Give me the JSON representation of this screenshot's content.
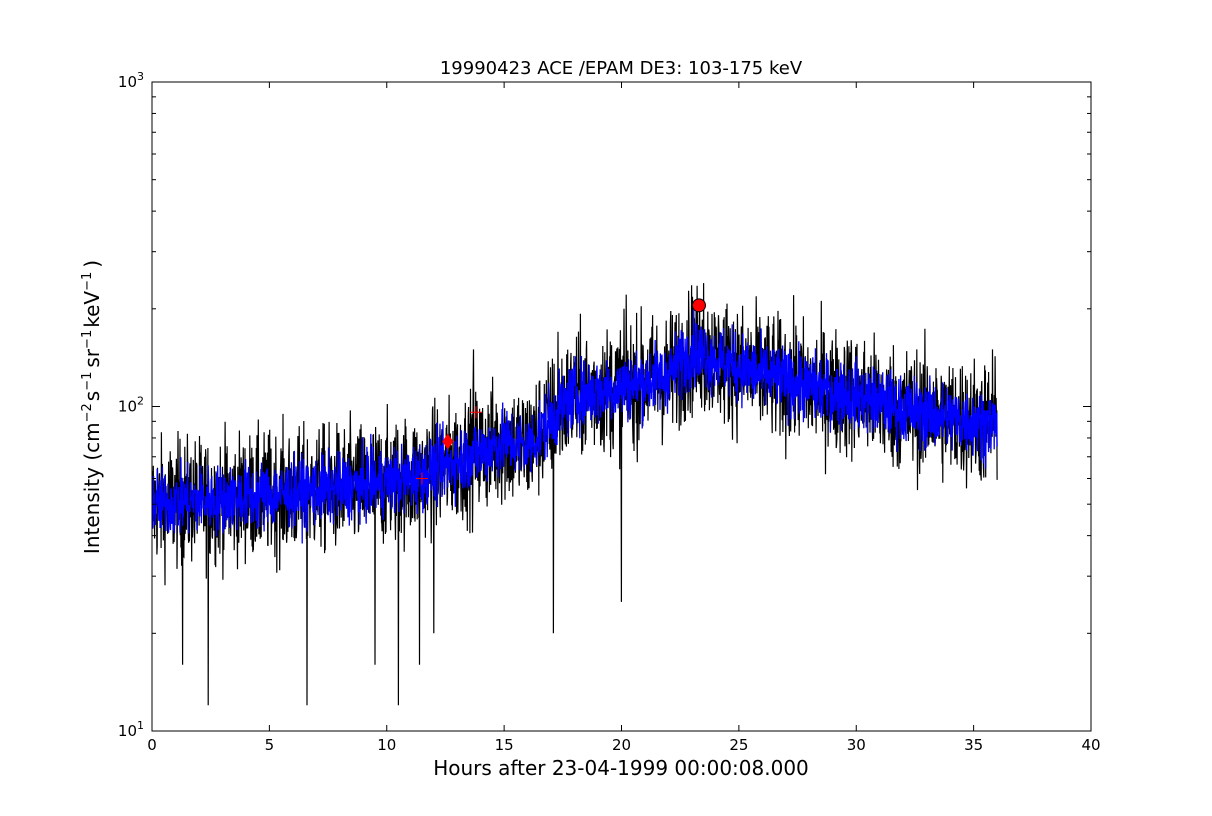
{
  "chart_data": {
    "type": "line",
    "title": "19990423 ACE /EPAM DE3: 103-175 keV",
    "xlabel": "Hours after 23-04-1999 00:00:08.000",
    "ylabel_main": "Intensity (cm",
    "ylabel_parts": [
      "Intensity (cm",
      "−2",
      "s",
      "−1",
      "sr",
      "−1",
      "keV",
      "−1",
      ")"
    ],
    "xlim": [
      0,
      40
    ],
    "ylim": [
      10,
      1000
    ],
    "yscale": "log",
    "grid": false,
    "xticks": [
      0,
      5,
      10,
      15,
      20,
      25,
      30,
      35,
      40
    ],
    "xtick_labels": [
      "0",
      "5",
      "10",
      "15",
      "20",
      "25",
      "30",
      "35",
      "40"
    ],
    "yticks": [
      10,
      100,
      1000
    ],
    "ytick_base": "10",
    "ytick_exponents": [
      "1",
      "2",
      "3"
    ],
    "series": [
      {
        "color": "#000000",
        "kind": "raw",
        "x_range": [
          0,
          36
        ],
        "trend": [
          [
            0,
            50
          ],
          [
            3,
            52
          ],
          [
            6,
            54
          ],
          [
            9,
            57
          ],
          [
            11,
            60
          ],
          [
            13,
            68
          ],
          [
            15,
            78
          ],
          [
            16,
            75
          ],
          [
            17,
            92
          ],
          [
            18,
            108
          ],
          [
            20,
            115
          ],
          [
            22,
            125
          ],
          [
            23,
            150
          ],
          [
            24,
            140
          ],
          [
            26,
            125
          ],
          [
            28,
            115
          ],
          [
            30,
            108
          ],
          [
            32,
            98
          ],
          [
            34,
            92
          ],
          [
            36,
            88
          ]
        ],
        "spikes_up": [
          [
            13.7,
            150
          ],
          [
            17.3,
            170
          ],
          [
            20.1,
            200
          ],
          [
            23.5,
            240
          ],
          [
            35.8,
            150
          ]
        ],
        "spikes_down": [
          [
            2.4,
            12
          ],
          [
            6.6,
            12
          ],
          [
            10.5,
            12
          ],
          [
            1.3,
            16
          ],
          [
            9.5,
            16
          ],
          [
            11.4,
            16
          ],
          [
            17.1,
            20
          ],
          [
            20.0,
            25
          ],
          [
            12.0,
            20
          ]
        ]
      },
      {
        "color": "#0000ff",
        "kind": "smoothed",
        "x_range": [
          0,
          36
        ],
        "trend": [
          [
            0,
            50
          ],
          [
            3,
            52
          ],
          [
            6,
            54
          ],
          [
            9,
            57
          ],
          [
            11,
            60
          ],
          [
            13,
            68
          ],
          [
            15,
            78
          ],
          [
            16,
            75
          ],
          [
            17,
            92
          ],
          [
            18,
            108
          ],
          [
            20,
            115
          ],
          [
            22,
            125
          ],
          [
            23,
            150
          ],
          [
            24,
            140
          ],
          [
            26,
            125
          ],
          [
            28,
            115
          ],
          [
            30,
            108
          ],
          [
            32,
            98
          ],
          [
            34,
            92
          ],
          [
            36,
            88
          ]
        ]
      }
    ],
    "markers": [
      {
        "kind": "circle",
        "x": 23.3,
        "y": 205,
        "color": "#ff0000"
      },
      {
        "kind": "diamond",
        "x": 12.6,
        "y": 78,
        "color": "#ff0000"
      },
      {
        "kind": "plus",
        "x": 11.5,
        "y": 60,
        "color": "#ff0000"
      },
      {
        "kind": "plus",
        "x": 13.8,
        "y": 96,
        "color": "#ff0000"
      }
    ]
  }
}
